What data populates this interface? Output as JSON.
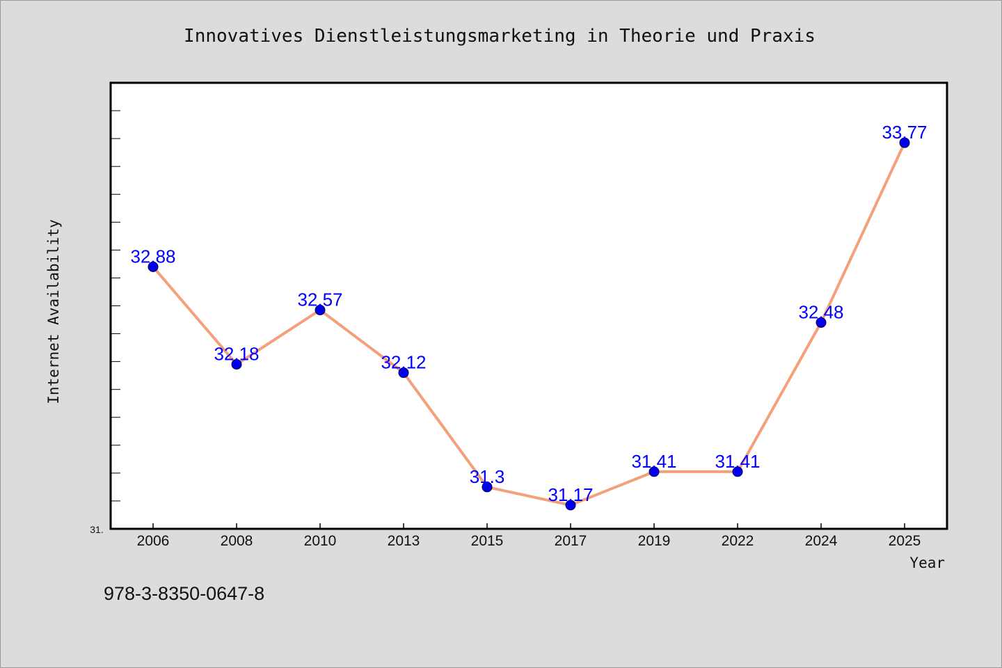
{
  "chart_data": {
    "type": "line",
    "title": "Innovatives Dienstleistungsmarketing in Theorie und Praxis",
    "xlabel": "Year",
    "ylabel": "Internet Availability",
    "categories": [
      "2006",
      "2008",
      "2010",
      "2013",
      "2015",
      "2017",
      "2019",
      "2022",
      "2024",
      "2025"
    ],
    "series": [
      {
        "values": [
          32.88,
          32.18,
          32.57,
          32.12,
          31.3,
          31.17,
          31.41,
          31.41,
          32.48,
          33.77
        ],
        "data_labels": [
          "32.88",
          "32.18",
          "32.57",
          "32.12",
          "31.3",
          "31.17",
          "31.41",
          "31.41",
          "32.48",
          "33.77"
        ]
      }
    ],
    "ylim": [
      31.0,
      34.2
    ],
    "y_min_label": "31.",
    "grid": false,
    "legend": "none"
  },
  "colors": {
    "background": "#dcdcdc",
    "plot_background": "#ffffff",
    "line": "#f4a07a",
    "marker": "#0000ee",
    "data_label": "#0000ff",
    "axis": "#000000"
  },
  "footer": {
    "isbn": "978-3-8350-0647-8"
  }
}
